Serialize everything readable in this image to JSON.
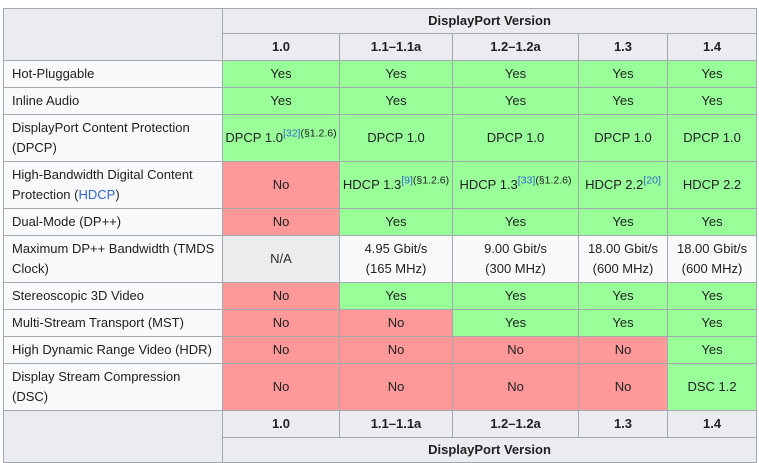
{
  "colors": {
    "yes_bg": "#99ff99",
    "no_bg": "#ff9999",
    "na_bg": "#ececec",
    "header_bg": "#eaecf0",
    "cell_bg": "#f8f9fa",
    "border": "#a2a9b1",
    "link": "#3366cc",
    "text": "#202122"
  },
  "table": {
    "title": "DisplayPort Version",
    "versions": [
      "1.0",
      "1.1–1.1a",
      "1.2–1.2a",
      "1.3",
      "1.4"
    ],
    "rows": [
      {
        "label_parts": [
          {
            "text": "Hot-Pluggable"
          }
        ],
        "cells": [
          {
            "type": "yes",
            "text": "Yes"
          },
          {
            "type": "yes",
            "text": "Yes"
          },
          {
            "type": "yes",
            "text": "Yes"
          },
          {
            "type": "yes",
            "text": "Yes"
          },
          {
            "type": "yes",
            "text": "Yes"
          }
        ]
      },
      {
        "label_parts": [
          {
            "text": "Inline Audio"
          }
        ],
        "cells": [
          {
            "type": "yes",
            "text": "Yes"
          },
          {
            "type": "yes",
            "text": "Yes"
          },
          {
            "type": "yes",
            "text": "Yes"
          },
          {
            "type": "yes",
            "text": "Yes"
          },
          {
            "type": "yes",
            "text": "Yes"
          }
        ]
      },
      {
        "label_parts": [
          {
            "text": "DisplayPort Content Protection (DPCP)"
          }
        ],
        "cells": [
          {
            "type": "yes",
            "text": "DPCP 1.0",
            "sup_ref": "[32]",
            "sup_note": "(§1.2.6)"
          },
          {
            "type": "yes",
            "text": "DPCP 1.0"
          },
          {
            "type": "yes",
            "text": "DPCP 1.0"
          },
          {
            "type": "yes",
            "text": "DPCP 1.0"
          },
          {
            "type": "yes",
            "text": "DPCP 1.0"
          }
        ]
      },
      {
        "label_parts": [
          {
            "text": "High-Bandwidth Digital Content Protection ("
          },
          {
            "text": "HDCP",
            "link": true
          },
          {
            "text": ")"
          }
        ],
        "cells": [
          {
            "type": "no",
            "text": "No"
          },
          {
            "type": "yes",
            "text": "HDCP 1.3",
            "sup_ref": "[9]",
            "sup_note": "(§1.2.6)"
          },
          {
            "type": "yes",
            "text": "HDCP 1.3",
            "sup_ref": "[33]",
            "sup_note": "(§1.2.6)"
          },
          {
            "type": "yes",
            "text": "HDCP 2.2",
            "sup_ref": "[20]"
          },
          {
            "type": "yes",
            "text": "HDCP 2.2"
          }
        ]
      },
      {
        "label_parts": [
          {
            "text": "Dual-Mode (DP++)"
          }
        ],
        "cells": [
          {
            "type": "no",
            "text": "No"
          },
          {
            "type": "yes",
            "text": "Yes"
          },
          {
            "type": "yes",
            "text": "Yes"
          },
          {
            "type": "yes",
            "text": "Yes"
          },
          {
            "type": "yes",
            "text": "Yes"
          }
        ]
      },
      {
        "label_parts": [
          {
            "text": "Maximum DP++ Bandwidth (TMDS Clock)"
          }
        ],
        "cells": [
          {
            "type": "na",
            "text": "N/A"
          },
          {
            "type": "plain",
            "text": "4.95 Gbit/s",
            "line2": "(165 MHz)"
          },
          {
            "type": "plain",
            "text": "9.00 Gbit/s",
            "line2": "(300 MHz)"
          },
          {
            "type": "plain",
            "text": "18.00 Gbit/s",
            "line2": "(600 MHz)"
          },
          {
            "type": "plain",
            "text": "18.00 Gbit/s",
            "line2": "(600 MHz)"
          }
        ]
      },
      {
        "label_parts": [
          {
            "text": "Stereoscopic 3D Video"
          }
        ],
        "cells": [
          {
            "type": "no",
            "text": "No"
          },
          {
            "type": "yes",
            "text": "Yes"
          },
          {
            "type": "yes",
            "text": "Yes"
          },
          {
            "type": "yes",
            "text": "Yes"
          },
          {
            "type": "yes",
            "text": "Yes"
          }
        ]
      },
      {
        "label_parts": [
          {
            "text": "Multi-Stream Transport (MST)"
          }
        ],
        "cells": [
          {
            "type": "no",
            "text": "No"
          },
          {
            "type": "no",
            "text": "No"
          },
          {
            "type": "yes",
            "text": "Yes"
          },
          {
            "type": "yes",
            "text": "Yes"
          },
          {
            "type": "yes",
            "text": "Yes"
          }
        ]
      },
      {
        "label_parts": [
          {
            "text": "High Dynamic Range Video (HDR)"
          }
        ],
        "cells": [
          {
            "type": "no",
            "text": "No"
          },
          {
            "type": "no",
            "text": "No"
          },
          {
            "type": "no",
            "text": "No"
          },
          {
            "type": "no",
            "text": "No"
          },
          {
            "type": "yes",
            "text": "Yes"
          }
        ]
      },
      {
        "label_parts": [
          {
            "text": "Display Stream Compression (DSC)"
          }
        ],
        "cells": [
          {
            "type": "no",
            "text": "No"
          },
          {
            "type": "no",
            "text": "No"
          },
          {
            "type": "no",
            "text": "No"
          },
          {
            "type": "no",
            "text": "No"
          },
          {
            "type": "yes",
            "text": "DSC 1.2"
          }
        ]
      }
    ]
  }
}
